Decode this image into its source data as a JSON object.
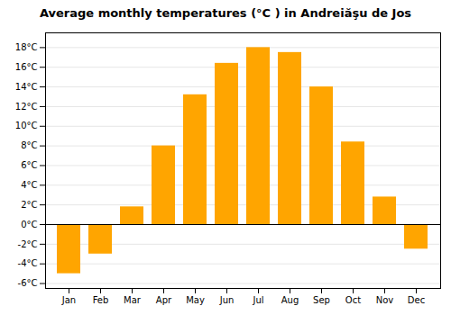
{
  "chart_data": {
    "type": "bar",
    "title": "Average monthly temperatures (°C ) in Andreiăşu de Jos",
    "categories": [
      "Jan",
      "Feb",
      "Mar",
      "Apr",
      "May",
      "Jun",
      "Jul",
      "Aug",
      "Sep",
      "Oct",
      "Nov",
      "Dec"
    ],
    "values": [
      -5.0,
      -3.0,
      1.8,
      8.0,
      13.2,
      16.4,
      18.0,
      17.5,
      14.0,
      8.4,
      2.8,
      -2.5
    ],
    "color": "#FFA500",
    "ylim": [
      -6.5,
      19.5
    ],
    "yticks": [
      {
        "value": -6,
        "label": "-6°C"
      },
      {
        "value": -4,
        "label": "-4°C"
      },
      {
        "value": -2,
        "label": "-2°C"
      },
      {
        "value": 0,
        "label": "0°C"
      },
      {
        "value": 2,
        "label": "2°C"
      },
      {
        "value": 4,
        "label": "4°C"
      },
      {
        "value": 6,
        "label": "6°C"
      },
      {
        "value": 8,
        "label": "8°C"
      },
      {
        "value": 10,
        "label": "10°C"
      },
      {
        "value": 12,
        "label": "12°C"
      },
      {
        "value": 14,
        "label": "14°C"
      },
      {
        "value": 16,
        "label": "16°C"
      },
      {
        "value": 18,
        "label": "18°C"
      }
    ],
    "grid": true
  }
}
